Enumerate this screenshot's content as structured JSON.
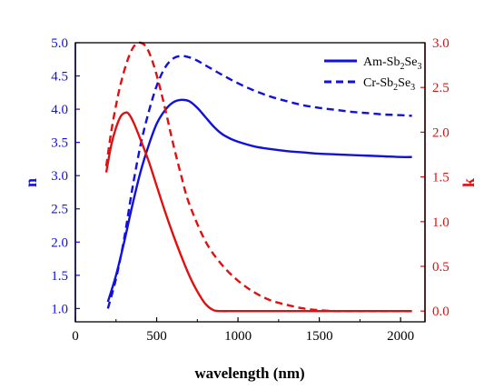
{
  "chart_data": {
    "type": "line",
    "xlabel": "wavelength (nm)",
    "ylabel_left": "n",
    "ylabel_right": "k",
    "xlim": [
      0,
      2150
    ],
    "ylim_left": [
      0.8,
      5.0
    ],
    "ylim_right": [
      -0.12,
      3.0
    ],
    "x_ticks": [
      "0",
      "500",
      "1000",
      "1500",
      "2000"
    ],
    "x_tick_values": [
      0,
      500,
      1000,
      1500,
      2000
    ],
    "y_left_ticks": [
      "1.0",
      "1.5",
      "2.0",
      "2.5",
      "3.0",
      "3.5",
      "4.0",
      "4.5",
      "5.0"
    ],
    "y_left_tick_values": [
      1.0,
      1.5,
      2.0,
      2.5,
      3.0,
      3.5,
      4.0,
      4.5,
      5.0
    ],
    "y_right_ticks": [
      "0.0",
      "0.5",
      "1.0",
      "1.5",
      "2.0",
      "2.5",
      "3.0"
    ],
    "y_right_tick_values": [
      0.0,
      0.5,
      1.0,
      1.5,
      2.0,
      2.5,
      3.0
    ],
    "grid": false,
    "legend_placement": "top-right",
    "colors": {
      "n_axis": "#1010e0",
      "k_axis": "#e01010"
    },
    "legend": [
      {
        "label": "Am-Sb",
        "sub1": "2",
        "mid": "Se",
        "sub2": "3",
        "color": "#1010e0",
        "dash": false
      },
      {
        "label": "Cr-Sb",
        "sub1": "2",
        "mid": "Se",
        "sub2": "3",
        "color": "#1010e0",
        "dash": true
      }
    ],
    "series": [
      {
        "name": "Am-Sb2Se3 n",
        "axis": "left",
        "color": "#1010e0",
        "dash": false,
        "x": [
          200,
          250,
          300,
          350,
          400,
          450,
          500,
          550,
          600,
          650,
          700,
          750,
          800,
          850,
          900,
          950,
          1000,
          1100,
          1200,
          1300,
          1400,
          1500,
          1600,
          1700,
          1800,
          1900,
          2000,
          2070
        ],
        "y": [
          1.1,
          1.5,
          2.0,
          2.55,
          3.05,
          3.45,
          3.78,
          3.98,
          4.1,
          4.14,
          4.12,
          4.02,
          3.88,
          3.74,
          3.63,
          3.56,
          3.51,
          3.44,
          3.4,
          3.37,
          3.35,
          3.33,
          3.32,
          3.31,
          3.3,
          3.29,
          3.28,
          3.28
        ]
      },
      {
        "name": "Cr-Sb2Se3 n",
        "axis": "left",
        "color": "#1010e0",
        "dash": true,
        "x": [
          200,
          250,
          300,
          350,
          400,
          450,
          500,
          550,
          600,
          650,
          700,
          750,
          800,
          900,
          1000,
          1100,
          1200,
          1300,
          1400,
          1500,
          1600,
          1700,
          1800,
          1900,
          2000,
          2070
        ],
        "y": [
          1.0,
          1.45,
          2.05,
          2.8,
          3.45,
          3.95,
          4.35,
          4.62,
          4.76,
          4.8,
          4.78,
          4.73,
          4.66,
          4.52,
          4.39,
          4.28,
          4.19,
          4.12,
          4.06,
          4.02,
          3.99,
          3.96,
          3.94,
          3.92,
          3.91,
          3.9
        ]
      },
      {
        "name": "Am-Sb2Se3 k",
        "axis": "right",
        "color": "#e01010",
        "dash": false,
        "x": [
          190,
          220,
          250,
          280,
          310,
          330,
          360,
          400,
          450,
          500,
          550,
          600,
          650,
          700,
          750,
          800,
          850,
          900,
          950,
          1000,
          1200,
          1500,
          2070
        ],
        "y": [
          1.55,
          1.85,
          2.05,
          2.18,
          2.22,
          2.2,
          2.1,
          1.92,
          1.68,
          1.4,
          1.12,
          0.86,
          0.62,
          0.4,
          0.22,
          0.08,
          0.01,
          0.0,
          0.0,
          0.0,
          0.0,
          0.0,
          0.0
        ]
      },
      {
        "name": "Cr-Sb2Se3 k",
        "axis": "right",
        "color": "#e01010",
        "dash": true,
        "x": [
          190,
          220,
          250,
          280,
          320,
          360,
          400,
          440,
          480,
          520,
          560,
          600,
          650,
          700,
          800,
          900,
          1000,
          1100,
          1200,
          1300,
          1400,
          1500,
          1600,
          1700,
          2070
        ],
        "y": [
          1.62,
          2.0,
          2.3,
          2.55,
          2.8,
          2.96,
          3.0,
          2.94,
          2.76,
          2.5,
          2.2,
          1.88,
          1.52,
          1.2,
          0.78,
          0.52,
          0.34,
          0.21,
          0.12,
          0.07,
          0.03,
          0.01,
          0.0,
          0.0,
          0.0
        ]
      }
    ]
  }
}
